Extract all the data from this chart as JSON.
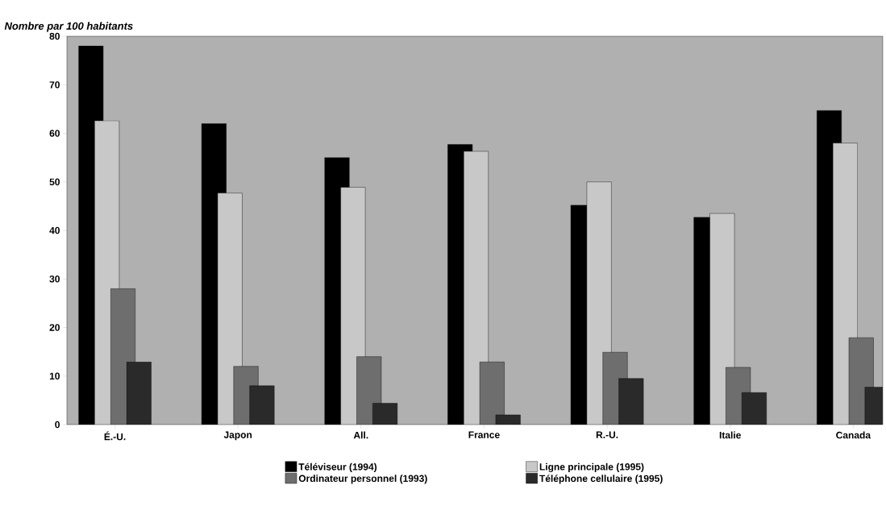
{
  "chart_data": {
    "type": "bar",
    "ylabel": "Nombre par 100 habitants",
    "categories": [
      "É.-U.",
      "Japon",
      "All.",
      "France",
      "R.-U.",
      "Italie",
      "Canada"
    ],
    "series": [
      {
        "name": "Téléviseur (1994)",
        "color": "#000000",
        "values": [
          78,
          62,
          55,
          57.7,
          45.2,
          42.7,
          64.7
        ]
      },
      {
        "name": "Ligne principale (1995)",
        "color": "#c8c8c8",
        "values": [
          62.6,
          47.7,
          48.9,
          56.3,
          50,
          43.5,
          58
        ]
      },
      {
        "name": "Ordinateur personnel (1993)",
        "color": "#6e6e6e",
        "values": [
          28,
          12,
          14,
          12.9,
          14.9,
          11.8,
          17.9
        ]
      },
      {
        "name": "Téléphone cellulaire (1995)",
        "color": "#2a2a2a",
        "values": [
          12.9,
          8,
          4.4,
          2,
          9.5,
          6.6,
          7.7
        ]
      }
    ],
    "ylim": [
      0,
      80
    ],
    "yticks": [
      0,
      10,
      20,
      30,
      40,
      50,
      60,
      70,
      80
    ],
    "legend": "bottom"
  }
}
